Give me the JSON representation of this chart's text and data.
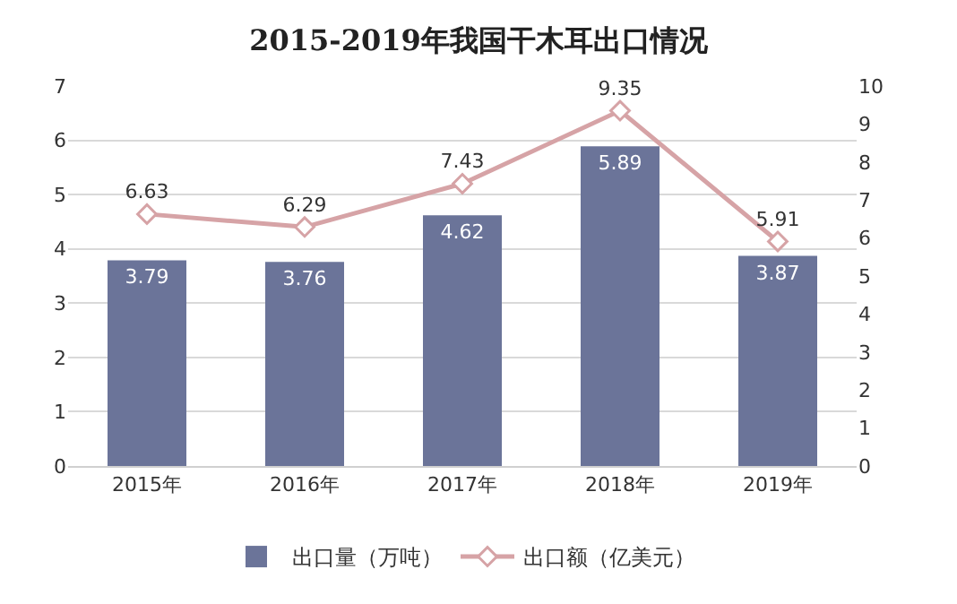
{
  "chart_data": {
    "type": "bar",
    "title": "2015-2019年我国干木耳出口情况",
    "categories": [
      "2015年",
      "2016年",
      "2017年",
      "2018年",
      "2019年"
    ],
    "series": [
      {
        "name": "出口量（万吨）",
        "color": "#6b7499",
        "values": [
          3.79,
          3.76,
          4.62,
          5.89,
          3.87
        ]
      },
      {
        "name": "出口额（亿美元）",
        "type": "line",
        "axis": "y2",
        "color": "#d6a3a6",
        "marker": "diamond",
        "values": [
          6.63,
          6.29,
          7.43,
          9.35,
          5.91
        ]
      }
    ],
    "ylim": [
      0,
      7
    ],
    "yticks": [
      0,
      1,
      2,
      3,
      4,
      5,
      6,
      7
    ],
    "y2lim": [
      0,
      10
    ],
    "y2ticks": [
      0,
      1,
      2,
      3,
      4,
      5,
      6,
      7,
      8,
      9,
      10
    ],
    "grid": "y",
    "legend": "bottom",
    "data_labels": true
  }
}
